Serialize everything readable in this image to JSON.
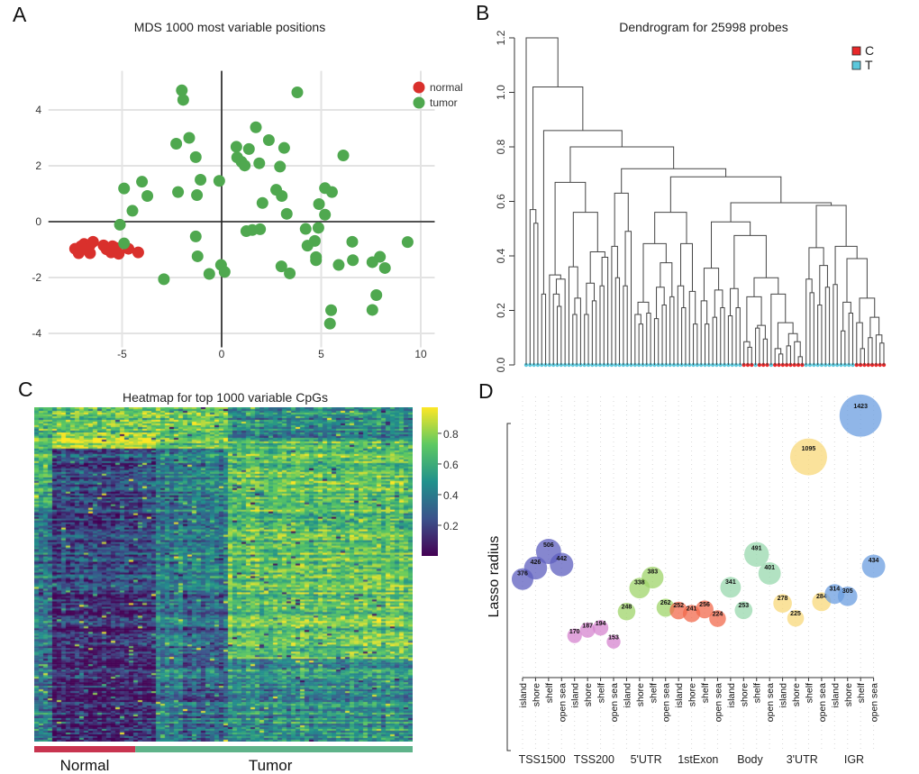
{
  "panel_labels": {
    "a": "A",
    "b": "B",
    "c": "C",
    "d": "D"
  },
  "chart_data": [
    {
      "type": "scatter",
      "title": "MDS 1000 most variable positions",
      "xlim": [
        -8.7,
        10.7
      ],
      "ylim": [
        -4.5,
        5.4
      ],
      "x_ticks": [
        -5,
        0,
        5,
        10
      ],
      "y_ticks": [
        -4,
        -2,
        0,
        2,
        4
      ],
      "grid": true,
      "legend": {
        "position": "top-right",
        "entries": [
          {
            "label": "normal",
            "color": "#d9302c"
          },
          {
            "label": "tumor",
            "color": "#4fa84f"
          }
        ]
      },
      "series": [
        {
          "name": "normal",
          "color": "#d9302c",
          "points": [
            [
              -7.36,
              -0.97
            ],
            [
              -7.18,
              -1.13
            ],
            [
              -6.91,
              -0.8
            ],
            [
              -6.61,
              -0.83
            ],
            [
              -6.61,
              -1.13
            ],
            [
              -6.76,
              -0.99
            ],
            [
              -7.06,
              -0.88
            ],
            [
              -6.46,
              -0.72
            ],
            [
              -5.93,
              -0.85
            ],
            [
              -5.78,
              -0.99
            ],
            [
              -5.48,
              -0.88
            ],
            [
              -5.55,
              -1.1
            ],
            [
              -5.17,
              -1.15
            ],
            [
              -5.32,
              -0.94
            ],
            [
              -4.68,
              -0.97
            ],
            [
              -4.19,
              -1.1
            ]
          ]
        },
        {
          "name": "tumor",
          "color": "#4fa84f",
          "points": [
            [
              -2.0,
              4.7
            ],
            [
              -1.93,
              4.36
            ],
            [
              3.8,
              4.63
            ],
            [
              1.72,
              3.38
            ],
            [
              -1.63,
              3.0
            ],
            [
              -2.28,
              2.79
            ],
            [
              2.37,
              2.92
            ],
            [
              0.74,
              2.68
            ],
            [
              1.37,
              2.6
            ],
            [
              3.14,
              2.64
            ],
            [
              -1.3,
              2.31
            ],
            [
              0.78,
              2.3
            ],
            [
              1.0,
              2.14
            ],
            [
              1.16,
              2.01
            ],
            [
              1.89,
              2.09
            ],
            [
              2.93,
              1.97
            ],
            [
              6.11,
              2.37
            ],
            [
              -4.9,
              1.19
            ],
            [
              -4.0,
              1.43
            ],
            [
              -3.73,
              0.92
            ],
            [
              -2.19,
              1.06
            ],
            [
              -1.06,
              1.5
            ],
            [
              -1.24,
              0.95
            ],
            [
              -0.12,
              1.46
            ],
            [
              2.74,
              1.14
            ],
            [
              3.02,
              0.92
            ],
            [
              2.05,
              0.67
            ],
            [
              3.27,
              0.28
            ],
            [
              5.19,
              1.2
            ],
            [
              5.54,
              1.06
            ],
            [
              4.89,
              0.63
            ],
            [
              5.19,
              0.25
            ],
            [
              -4.48,
              0.39
            ],
            [
              -5.11,
              -0.11
            ],
            [
              -4.9,
              -0.78
            ],
            [
              -1.3,
              -0.53
            ],
            [
              -1.21,
              -1.24
            ],
            [
              1.24,
              -0.34
            ],
            [
              1.54,
              -0.3
            ],
            [
              1.93,
              -0.27
            ],
            [
              4.22,
              -0.26
            ],
            [
              4.86,
              -0.22
            ],
            [
              4.68,
              -0.69
            ],
            [
              4.31,
              -0.86
            ],
            [
              4.74,
              -1.27
            ],
            [
              4.74,
              -1.38
            ],
            [
              6.56,
              -0.72
            ],
            [
              6.59,
              -1.38
            ],
            [
              5.88,
              -1.55
            ],
            [
              7.57,
              -1.45
            ],
            [
              7.95,
              -1.26
            ],
            [
              8.2,
              -1.66
            ],
            [
              9.34,
              -0.73
            ],
            [
              -0.03,
              -1.55
            ],
            [
              0.15,
              -1.8
            ],
            [
              -0.62,
              -1.87
            ],
            [
              -2.9,
              -2.06
            ],
            [
              3.0,
              -1.6
            ],
            [
              3.42,
              -1.85
            ],
            [
              7.77,
              -2.63
            ],
            [
              7.57,
              -3.16
            ],
            [
              5.5,
              -3.17
            ],
            [
              5.44,
              -3.65
            ]
          ]
        }
      ]
    },
    {
      "type": "dendrogram",
      "title": "Dendrogram for 25998 probes",
      "ylim": [
        0,
        1.2
      ],
      "y_ticks": [
        "0.0",
        "0.2",
        "0.4",
        "0.6",
        "0.8",
        "1.0",
        "1.2"
      ],
      "legend": {
        "position": "top-right",
        "entries": [
          {
            "label": "C",
            "color": "#e8282a"
          },
          {
            "label": "T",
            "color": "#5bc8dc"
          }
        ]
      },
      "tree": [
        1.2,
        "T",
        [
          1.02,
          [
            0.57,
            "T",
            [
              0.52,
              "T",
              "T"
            ]
          ],
          [
            0.86,
            [
              0.26,
              "T",
              "T"
            ],
            [
              0.8,
              [
                0.67,
                [
                  0.33,
                  "T",
                  [
                    0.315,
                    [
                      0.26,
                      "T",
                      [
                        0.215,
                        "T",
                        "T"
                      ]
                    ],
                    "T"
                  ]
                ],
                [
                  0.56,
                  [
                    0.36,
                    "T",
                    [
                      0.245,
                      [
                        0.185,
                        "T",
                        "T"
                      ],
                      "T"
                    ]
                  ],
                  [
                    0.415,
                    [
                      0.3,
                      [
                        0.185,
                        "T",
                        "T"
                      ],
                      [
                        0.235,
                        "T",
                        "T"
                      ]
                    ],
                    [
                      0.395,
                      [
                        0.29,
                        "T",
                        "T"
                      ],
                      "T"
                    ]
                  ]
                ]
              ],
              [
                0.72,
                [
                  0.63,
                  [
                    0.435,
                    "T",
                    [
                      0.32,
                      "T",
                      "T"
                    ]
                  ],
                  [
                    0.49,
                    [
                      0.29,
                      "T",
                      "T"
                    ],
                    "T"
                  ]
                ],
                [
                  0.69,
                  [
                    0.56,
                    [
                      0.445,
                      [
                        0.23,
                        [
                          0.185,
                          "T",
                          [
                            0.15,
                            "T",
                            "T"
                          ]
                        ],
                        [
                          0.19,
                          "T",
                          "T"
                        ]
                      ],
                      [
                        0.375,
                        [
                          0.285,
                          [
                            0.17,
                            "T",
                            "T"
                          ],
                          [
                            0.22,
                            "T",
                            "T"
                          ]
                        ],
                        [
                          0.25,
                          "T",
                          "T"
                        ]
                      ]
                    ],
                    [
                      0.445,
                      [
                        0.29,
                        "T",
                        [
                          0.21,
                          "T",
                          "T"
                        ]
                      ],
                      [
                        0.27,
                        "T",
                        [
                          0.15,
                          "T",
                          "T"
                        ]
                      ]
                    ]
                  ],
                  [
                    0.595,
                    [
                      0.525,
                      [
                        0.355,
                        [
                          0.235,
                          "T",
                          [
                            0.15,
                            "T",
                            "T"
                          ]
                        ],
                        [
                          0.275,
                          [
                            0.175,
                            "T",
                            "T"
                          ],
                          [
                            0.21,
                            "T",
                            "T"
                          ]
                        ]
                      ],
                      [
                        0.475,
                        [
                          0.28,
                          [
                            0.18,
                            "T",
                            "T"
                          ],
                          [
                            0.21,
                            "T",
                            "T"
                          ]
                        ],
                        [
                          0.32,
                          [
                            0.25,
                            [
                              0.085,
                              "C",
                              [
                                0.065,
                                "C",
                                "C"
                              ]
                            ],
                            [
                              0.145,
                              [
                                0.135,
                                "T",
                                "C"
                              ],
                              [
                                0.095,
                                "C",
                                "C"
                              ]
                            ]
                          ],
                          [
                            0.26,
                            "T",
                            [
                              0.155,
                              [
                                0.06,
                                "C",
                                [
                                  0.04,
                                  "C",
                                  "C"
                                ]
                              ],
                              [
                                0.115,
                                [
                                  0.07,
                                  "C",
                                  "C"
                                ],
                                [
                                  0.085,
                                  "C",
                                  [
                                    0.03,
                                    "C",
                                    "C"
                                  ]
                                ]
                              ]
                            ]
                          ]
                        ]
                      ]
                    ],
                    [
                      0.585,
                      [
                        0.43,
                        [
                          0.315,
                          "T",
                          [
                            0.265,
                            "T",
                            "T"
                          ]
                        ],
                        [
                          0.365,
                          [
                            0.22,
                            "T",
                            "T"
                          ],
                          [
                            0.285,
                            "T",
                            "T"
                          ]
                        ]
                      ],
                      [
                        0.435,
                        [
                          0.295,
                          "T",
                          "T"
                        ],
                        [
                          0.39,
                          [
                            0.23,
                            [
                              0.125,
                              "T",
                              "T"
                            ],
                            [
                              0.19,
                              "T",
                              "T"
                            ]
                          ],
                          [
                            0.245,
                            [
                              0.155,
                              "C",
                              [
                                0.06,
                                "C",
                                "C"
                              ]
                            ],
                            [
                              0.175,
                              [
                                0.1,
                                "C",
                                "C"
                              ],
                              [
                                0.11,
                                "C",
                                [
                                  0.08,
                                  "C",
                                  "C"
                                ]
                              ]
                            ]
                          ]
                        ]
                      ]
                    ]
                  ]
                ]
              ]
            ]
          ]
        ]
      ]
    },
    {
      "type": "heatmap",
      "title": "Heatmap for top 1000 variable CpGs",
      "colorbar_range": [
        0,
        1
      ],
      "colorbar_ticks": [
        "0.2",
        "0.4",
        "0.6",
        "0.8"
      ],
      "colormap": [
        "#440154",
        "#3b528b",
        "#21918c",
        "#5ec962",
        "#fde725"
      ],
      "groups": [
        {
          "label": "Normal",
          "color": "#c8344f",
          "fraction": 0.267
        },
        {
          "label": "Tumor",
          "color": "#5fb38a",
          "fraction": 0.733
        }
      ]
    },
    {
      "type": "bubble",
      "ylabel": "Lasso radius",
      "subcategories": [
        "island",
        "shore",
        "shelf",
        "open sea"
      ],
      "groups": [
        {
          "name": "TSS1500",
          "color": "#5d5fbf",
          "values": [
            376,
            426,
            506,
            442
          ]
        },
        {
          "name": "TSS200",
          "color": "#d584cf",
          "values": [
            170,
            187,
            194,
            153
          ]
        },
        {
          "name": "5'UTR",
          "color": "#9fd46a",
          "values": [
            248,
            338,
            383,
            262
          ]
        },
        {
          "name": "1stExon",
          "color": "#f26a4c",
          "values": [
            252,
            241,
            256,
            224
          ]
        },
        {
          "name": "Body",
          "color": "#98d8ae",
          "values": [
            341,
            253,
            491,
            401
          ]
        },
        {
          "name": "3'UTR",
          "color": "#f8d87a",
          "values": [
            278,
            225,
            1095,
            284
          ]
        },
        {
          "name": "IGR",
          "color": "#6b9de0",
          "values": [
            314,
            305,
            1423,
            434
          ]
        }
      ]
    }
  ]
}
